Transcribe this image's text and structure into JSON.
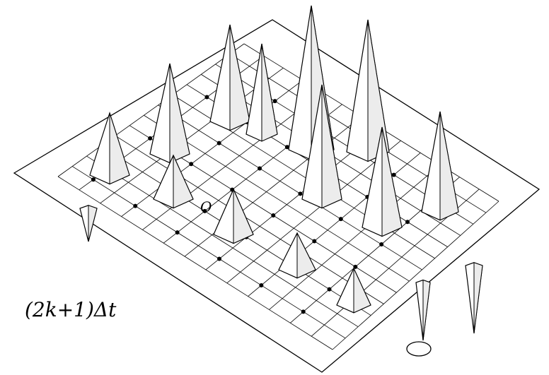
{
  "label": "(2k+1)Δt",
  "origin_label": "O"
}
